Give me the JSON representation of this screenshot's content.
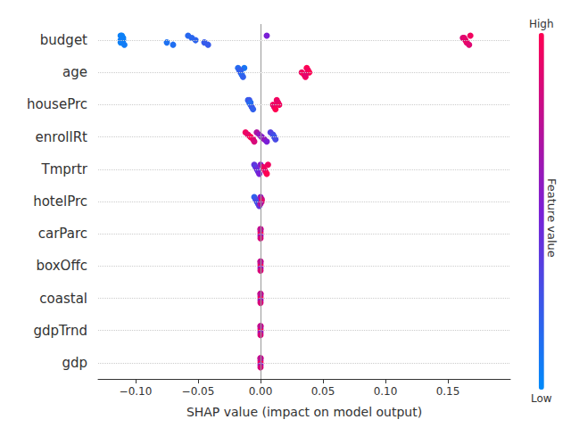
{
  "chart_data": {
    "type": "scatter",
    "x_label": "SHAP value (impact on model output)",
    "categories": [
      "budget",
      "age",
      "housePrc",
      "enrollRt",
      "Tmprtr",
      "hotelPrc",
      "carParc",
      "boxOffc",
      "coastal",
      "gdpTrnd",
      "gdp"
    ],
    "values": [
      [
        [
          -0.112,
          0.05
        ],
        [
          -0.111,
          0.05
        ],
        [
          -0.11,
          0.06
        ],
        [
          -0.112,
          0.04
        ],
        [
          -0.109,
          0.07
        ],
        [
          -0.111,
          0.05
        ],
        [
          -0.11,
          0.05
        ],
        [
          -0.112,
          0.06
        ],
        [
          -0.075,
          0.12
        ],
        [
          -0.07,
          0.13
        ],
        [
          -0.058,
          0.16
        ],
        [
          -0.055,
          0.17
        ],
        [
          -0.052,
          0.18
        ],
        [
          -0.045,
          0.22
        ],
        [
          -0.042,
          0.22
        ],
        [
          0.005,
          0.5
        ],
        [
          0.162,
          0.85
        ],
        [
          0.164,
          0.9
        ],
        [
          0.165,
          0.92
        ],
        [
          0.167,
          0.88
        ],
        [
          0.168,
          0.95
        ],
        [
          0.163,
          0.9
        ]
      ],
      [
        [
          -0.018,
          0.15
        ],
        [
          -0.017,
          0.2
        ],
        [
          -0.016,
          0.25
        ],
        [
          -0.015,
          0.15
        ],
        [
          -0.014,
          0.2
        ],
        [
          -0.013,
          0.1
        ],
        [
          -0.016,
          0.2
        ],
        [
          0.033,
          0.95
        ],
        [
          0.035,
          1.0
        ],
        [
          0.036,
          0.95
        ],
        [
          0.037,
          1.0
        ],
        [
          0.038,
          0.95
        ],
        [
          0.039,
          1.0
        ],
        [
          0.036,
          0.9
        ]
      ],
      [
        [
          -0.01,
          0.2
        ],
        [
          -0.009,
          0.15
        ],
        [
          -0.008,
          0.2
        ],
        [
          -0.007,
          0.25
        ],
        [
          -0.006,
          0.2
        ],
        [
          -0.009,
          0.25
        ],
        [
          -0.008,
          0.15
        ],
        [
          0.01,
          0.95
        ],
        [
          0.011,
          0.9
        ],
        [
          0.012,
          1.0
        ],
        [
          0.013,
          0.95
        ],
        [
          0.014,
          0.9
        ],
        [
          0.015,
          0.95
        ]
      ],
      [
        [
          -0.012,
          0.95
        ],
        [
          -0.01,
          0.9
        ],
        [
          -0.008,
          1.0
        ],
        [
          -0.006,
          0.9
        ],
        [
          -0.005,
          0.85
        ],
        [
          -0.003,
          0.7
        ],
        [
          -0.001,
          0.6
        ],
        [
          0.001,
          0.55
        ],
        [
          0.003,
          0.6
        ],
        [
          0.005,
          0.5
        ],
        [
          0.008,
          0.35
        ],
        [
          0.01,
          0.3
        ],
        [
          0.011,
          0.25
        ],
        [
          0.012,
          0.3
        ]
      ],
      [
        [
          -0.005,
          0.4
        ],
        [
          -0.004,
          0.35
        ],
        [
          -0.003,
          0.45
        ],
        [
          -0.002,
          0.4
        ],
        [
          -0.001,
          0.5
        ],
        [
          0.0,
          0.55
        ],
        [
          0.002,
          0.9
        ],
        [
          0.003,
          0.95
        ],
        [
          0.004,
          0.9
        ],
        [
          0.005,
          1.0
        ],
        [
          0.006,
          0.95
        ]
      ],
      [
        [
          -0.005,
          0.2
        ],
        [
          -0.004,
          0.25
        ],
        [
          -0.003,
          0.3
        ],
        [
          -0.002,
          0.25
        ],
        [
          -0.001,
          0.4
        ],
        [
          0.0,
          0.6
        ],
        [
          0.001,
          0.8
        ],
        [
          0.001,
          0.9
        ],
        [
          0.0,
          0.7
        ]
      ],
      [
        [
          0.0,
          0.9
        ],
        [
          0.0,
          0.7
        ],
        [
          0.0,
          1.0
        ],
        [
          0.0,
          0.6
        ],
        [
          0.0,
          0.85
        ],
        [
          0.0,
          0.75
        ]
      ],
      [
        [
          0.0,
          0.9
        ],
        [
          0.0,
          0.7
        ],
        [
          0.0,
          1.0
        ],
        [
          0.0,
          0.6
        ],
        [
          0.0,
          0.85
        ],
        [
          0.0,
          0.75
        ]
      ],
      [
        [
          0.0,
          0.9
        ],
        [
          0.0,
          0.7
        ],
        [
          0.0,
          1.0
        ],
        [
          0.0,
          0.6
        ],
        [
          0.0,
          0.85
        ],
        [
          0.0,
          0.75
        ]
      ],
      [
        [
          0.0,
          0.9
        ],
        [
          0.0,
          0.7
        ],
        [
          0.0,
          1.0
        ],
        [
          0.0,
          0.6
        ],
        [
          0.0,
          0.85
        ],
        [
          0.0,
          0.75
        ]
      ],
      [
        [
          0.0,
          0.9
        ],
        [
          0.0,
          0.7
        ],
        [
          0.0,
          1.0
        ],
        [
          0.0,
          0.6
        ],
        [
          0.0,
          0.85
        ],
        [
          0.0,
          0.75
        ]
      ]
    ],
    "xlim": [
      -0.13,
      0.2
    ],
    "xticks": [
      {
        "value": -0.1,
        "label": "−0.10"
      },
      {
        "value": -0.05,
        "label": "−0.05"
      },
      {
        "value": 0,
        "label": "0.00"
      },
      {
        "value": 0.05,
        "label": "0.05"
      },
      {
        "value": 0.1,
        "label": "0.10"
      },
      {
        "value": 0.15,
        "label": "0.15"
      }
    ],
    "reference_line": 0,
    "grid": true,
    "colorbar_label": "Feature value",
    "colorbar_range": [
      0,
      1
    ],
    "colorbar_ticks": [
      {
        "value": 0,
        "label": "Low"
      },
      {
        "value": 1,
        "label": "High"
      }
    ]
  }
}
